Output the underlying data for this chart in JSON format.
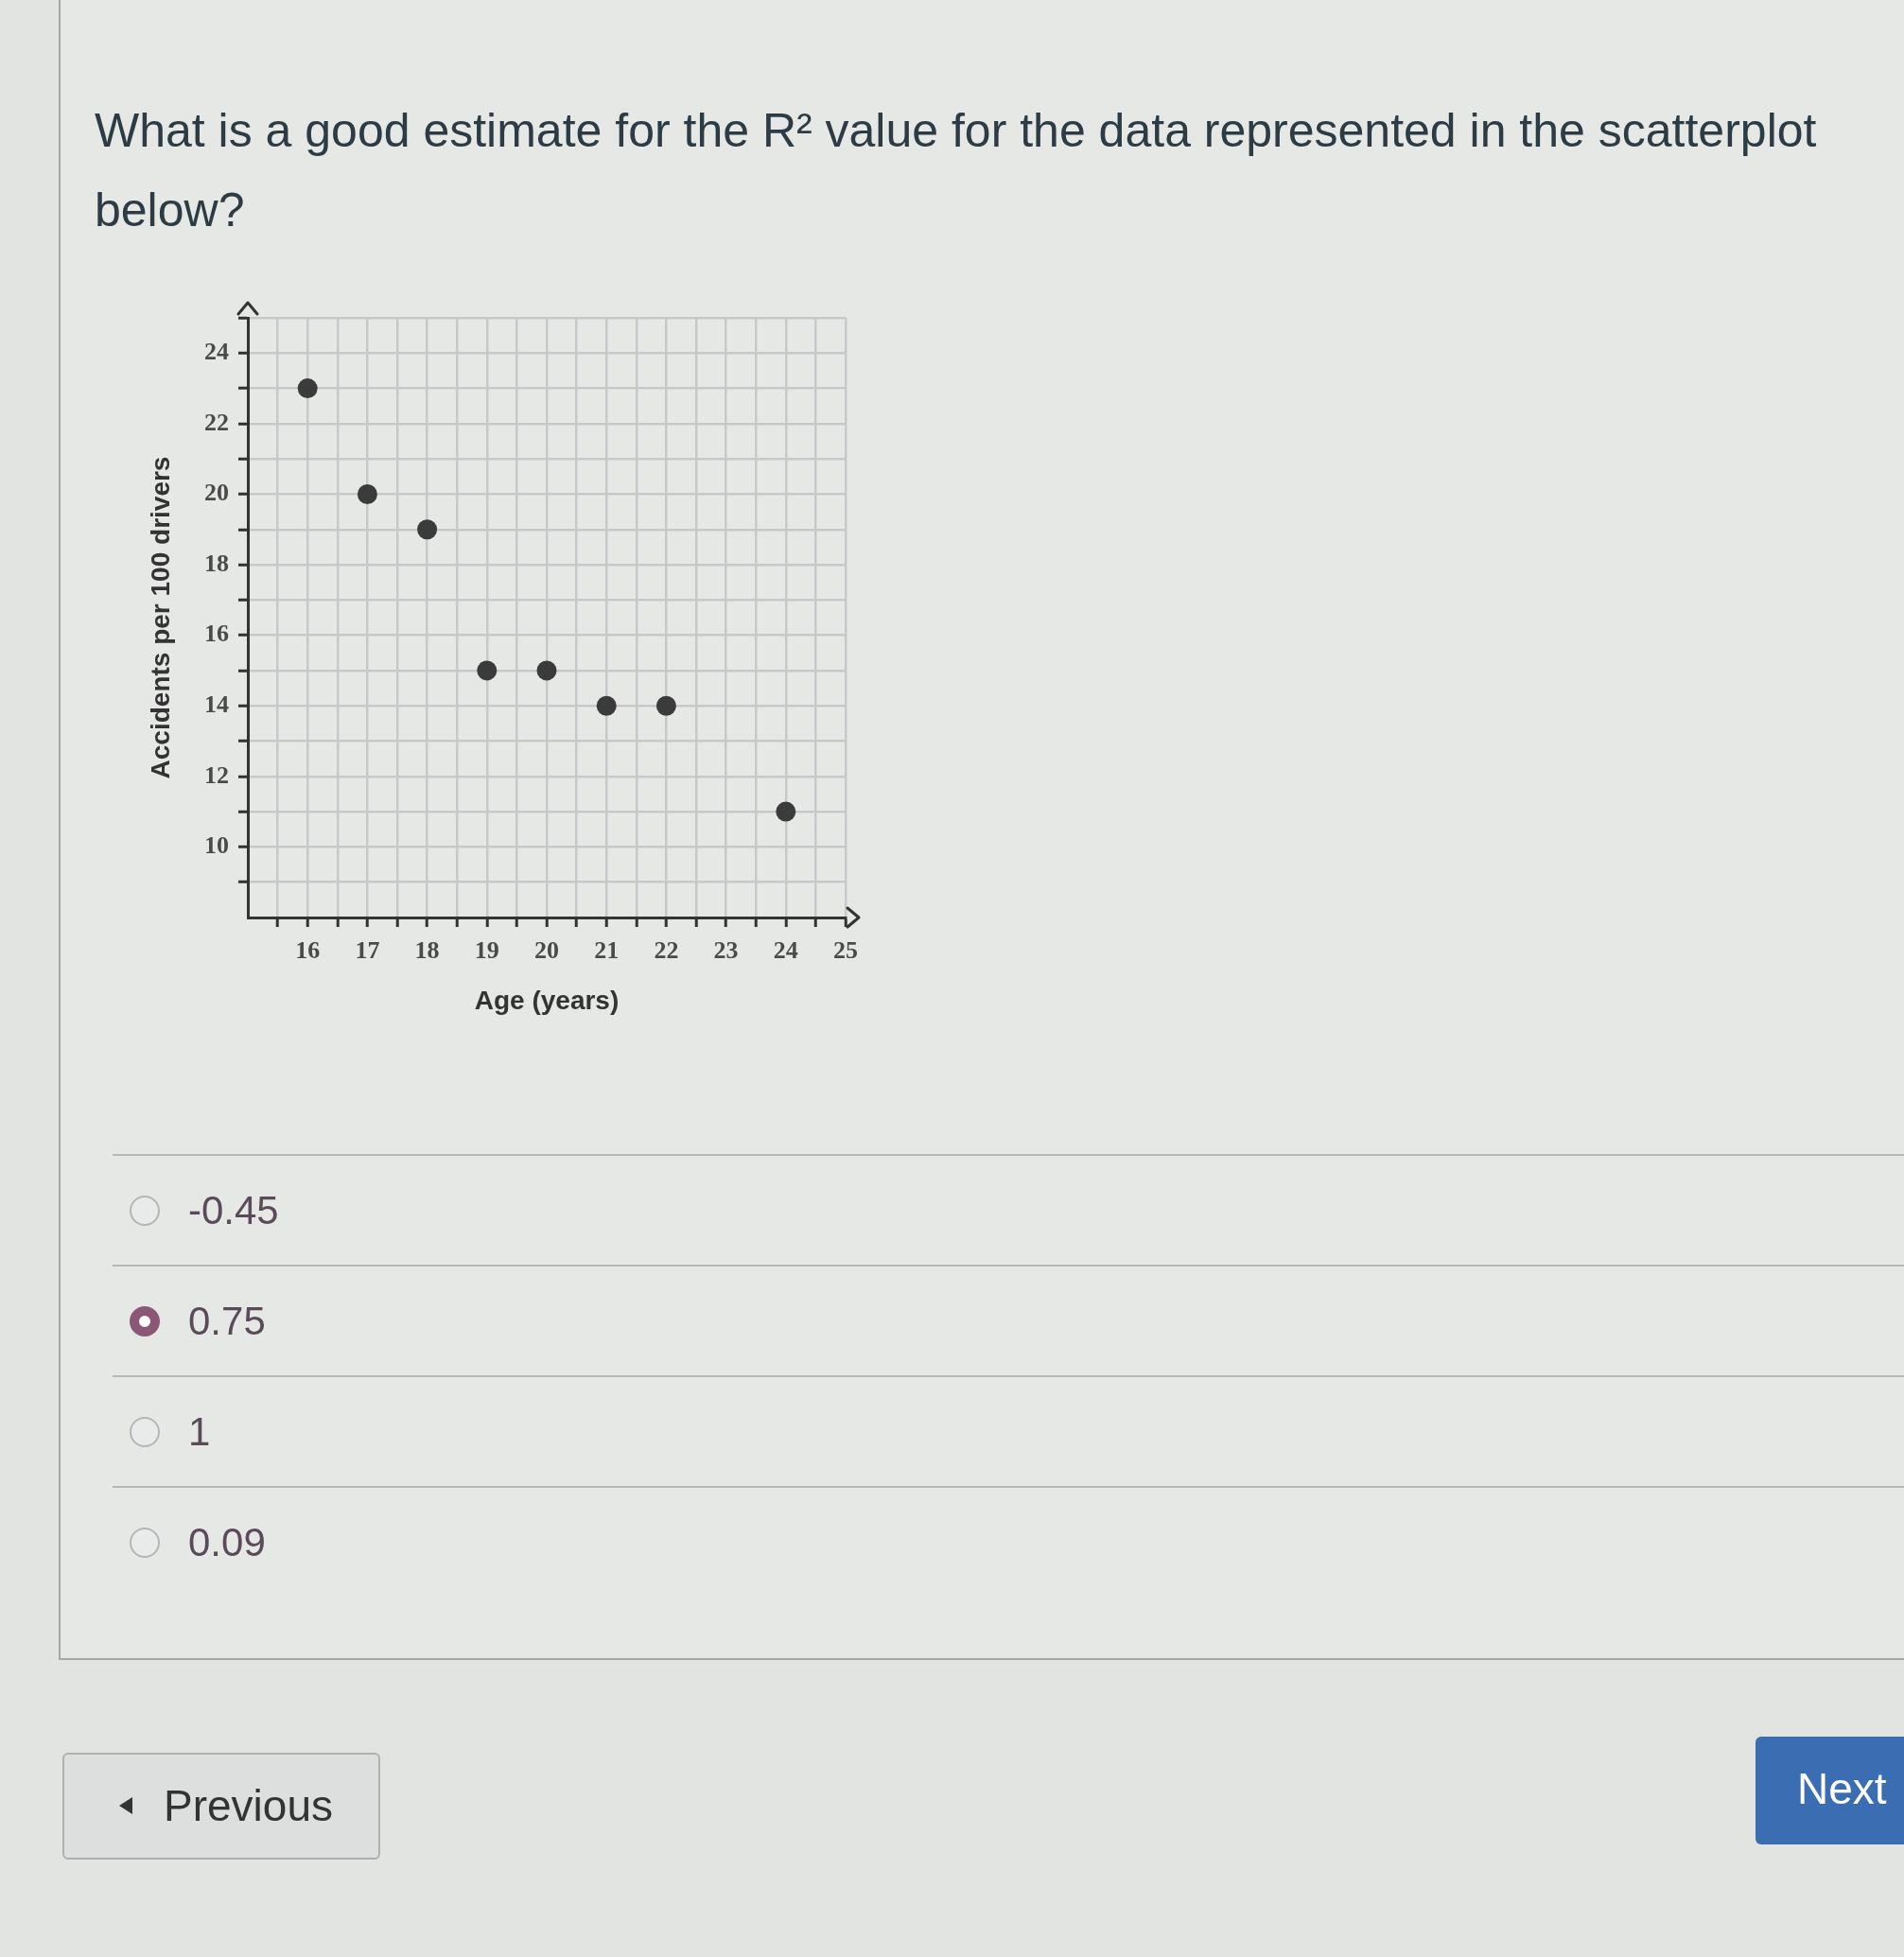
{
  "chart_data": {
    "type": "scatter",
    "title": "What is a good estimate for the R² value for the data represented in the scatterplot below?",
    "xlabel": "Age (years)",
    "ylabel": "Accidents per 100 drivers",
    "x": [
      16,
      17,
      18,
      19,
      20,
      21,
      22,
      24
    ],
    "values": [
      23,
      20,
      19,
      15,
      15,
      14,
      14,
      11
    ],
    "color": "#3b3b3b",
    "marker": "circle",
    "grid": true,
    "xlim": [
      15,
      25
    ],
    "ylim": [
      8,
      25
    ],
    "xticks": [
      {
        "value": 15.5,
        "label": null
      },
      16,
      {
        "value": 16.5,
        "label": null
      },
      17,
      {
        "value": 17.5,
        "label": null
      },
      18,
      {
        "value": 18.5,
        "label": null
      },
      19,
      {
        "value": 19.5,
        "label": null
      },
      20,
      {
        "value": 20.5,
        "label": null
      },
      21,
      {
        "value": 21.5,
        "label": null
      },
      22,
      {
        "value": 22.5,
        "label": null
      },
      23,
      {
        "value": 23.5,
        "label": null
      },
      24,
      {
        "value": 24.5,
        "label": null
      },
      25
    ],
    "yticks": [
      {
        "value": 9,
        "label": null
      },
      10,
      {
        "value": 11,
        "label": null
      },
      12,
      {
        "value": 13,
        "label": null
      },
      14,
      {
        "value": 15,
        "label": null
      },
      16,
      {
        "value": 17,
        "label": null
      },
      18,
      {
        "value": 19,
        "label": null
      },
      20,
      {
        "value": 21,
        "label": null
      },
      22,
      {
        "value": 23,
        "label": null
      },
      24,
      {
        "value": 25,
        "label": null
      }
    ],
    "annotations": [
      "-0.45",
      "0.75",
      "1",
      "0.09",
      "Previous",
      "Next"
    ]
  }
}
